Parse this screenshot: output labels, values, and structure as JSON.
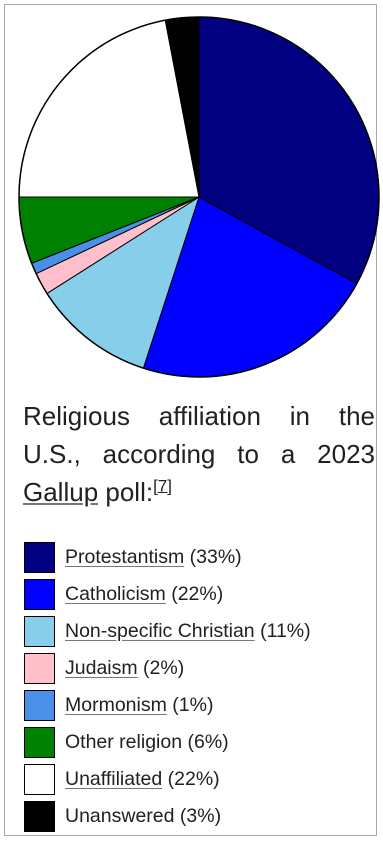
{
  "chart_data": {
    "type": "pie",
    "title": "",
    "caption": {
      "text_prefix": "Religious affiliation in the U.S., according to a 2023 ",
      "link_text": "Gallup",
      "text_suffix": " poll:",
      "ref": "[7]"
    },
    "slices": [
      {
        "name": "Protestantism",
        "value": 33,
        "label": "(33%)",
        "color": "#000080",
        "linked": true
      },
      {
        "name": "Catholicism",
        "value": 22,
        "label": "(22%)",
        "color": "#0000ff",
        "linked": true
      },
      {
        "name": "Non-specific Christian",
        "value": 11,
        "label": "(11%)",
        "color": "#87ceeb",
        "linked": true
      },
      {
        "name": "Judaism",
        "value": 2,
        "label": "(2%)",
        "color": "#ffc0cb",
        "linked": true
      },
      {
        "name": "Mormonism",
        "value": 1,
        "label": "(1%)",
        "color": "#4a90e8",
        "linked": true
      },
      {
        "name": "Other religion",
        "value": 6,
        "label": "(6%)",
        "color": "#008000",
        "linked": false
      },
      {
        "name": "Unaffiliated",
        "value": 22,
        "label": "(22%)",
        "color": "#ffffff",
        "linked": true
      },
      {
        "name": "Unanswered",
        "value": 3,
        "label": "(3%)",
        "color": "#000000",
        "linked": false
      }
    ],
    "start": "12 o'clock",
    "direction": "clockwise"
  }
}
